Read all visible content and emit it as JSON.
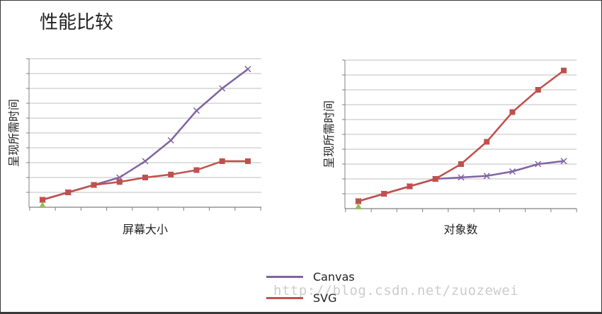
{
  "title": "性能比较",
  "colors": {
    "canvas": "#8064a2",
    "svg": "#c0504d",
    "start_marker": "#9bbb59",
    "grid": "#bfbfbf",
    "axis": "#808080"
  },
  "legend": {
    "canvas_label": "Canvas",
    "svg_label": "SVG"
  },
  "watermark": "http://blog.csdn.net/zuozewei",
  "chart_data": [
    {
      "type": "line",
      "xlabel": "屏幕大小",
      "ylabel": "呈现所需时间",
      "x": [
        1,
        2,
        3,
        4,
        5,
        6,
        7,
        8,
        9
      ],
      "ylim": [
        0,
        10
      ],
      "grid": true,
      "start_marker": {
        "x": 1,
        "y": 0
      },
      "series": [
        {
          "name": "Canvas",
          "values": [
            0.5,
            1.0,
            1.5,
            2.0,
            3.1,
            4.5,
            6.5,
            8.0,
            9.3
          ]
        },
        {
          "name": "SVG",
          "values": [
            0.5,
            1.0,
            1.5,
            1.7,
            2.0,
            2.2,
            2.5,
            3.1,
            3.1
          ]
        }
      ]
    },
    {
      "type": "line",
      "xlabel": "对象数",
      "ylabel": "呈现所需时间",
      "x": [
        1,
        2,
        3,
        4,
        5,
        6,
        7,
        8,
        9
      ],
      "ylim": [
        0,
        10
      ],
      "grid": true,
      "start_marker": {
        "x": 1,
        "y": 0
      },
      "series": [
        {
          "name": "Canvas",
          "values": [
            0.5,
            1.0,
            1.5,
            2.0,
            2.1,
            2.2,
            2.5,
            3.0,
            3.2
          ]
        },
        {
          "name": "SVG",
          "values": [
            0.5,
            1.0,
            1.5,
            2.0,
            3.0,
            4.5,
            6.5,
            8.0,
            9.3
          ]
        }
      ]
    }
  ]
}
